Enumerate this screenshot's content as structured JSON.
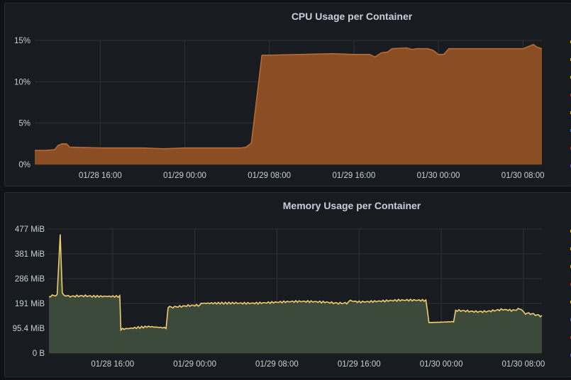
{
  "panels": {
    "cpu": {
      "title": "CPU Usage per Container"
    },
    "memory": {
      "title": "Memory Usage per Container"
    }
  },
  "colors": {
    "background": "#111217",
    "panel": "#181b1f",
    "cpu_fill": "#8b4d24",
    "cpu_line": "#b86a34",
    "mem_fill": "#3b4a3a",
    "mem_line": "#f2cc6c",
    "mem_second_series": "#5a2a4a",
    "mem_third_series": "#2a3552"
  },
  "chart_data": [
    {
      "type": "area",
      "title": "CPU Usage per Container",
      "x_ticks": [
        "01/28 16:00",
        "01/29 00:00",
        "01/29 08:00",
        "01/29 16:00",
        "01/30 00:00",
        "01/30 08:00"
      ],
      "y_ticks": [
        "0%",
        "5%",
        "10%",
        "15%"
      ],
      "ylim": [
        0,
        15
      ],
      "xlim_hours": [
        -6.2,
        41.8
      ],
      "series": [
        {
          "values_pct": [
            [
              -6.2,
              1.7
            ],
            [
              -5.2,
              1.7
            ],
            [
              -4.3,
              1.8
            ],
            [
              -4.0,
              2.3
            ],
            [
              -3.6,
              2.5
            ],
            [
              -3.2,
              2.5
            ],
            [
              -2.9,
              2.1
            ],
            [
              0,
              2.0
            ],
            [
              4,
              2.0
            ],
            [
              6,
              1.9
            ],
            [
              8,
              2.0
            ],
            [
              12,
              2.0
            ],
            [
              13.3,
              2.0
            ],
            [
              13.8,
              2.1
            ],
            [
              14.3,
              2.6
            ],
            [
              15.3,
              13.2
            ],
            [
              19,
              13.3
            ],
            [
              22,
              13.4
            ],
            [
              24,
              13.3
            ],
            [
              25.5,
              13.3
            ],
            [
              26.0,
              13.0
            ],
            [
              26.6,
              13.5
            ],
            [
              27.2,
              13.6
            ],
            [
              27.6,
              14.0
            ],
            [
              29,
              14.1
            ],
            [
              29.5,
              13.9
            ],
            [
              30.0,
              14.0
            ],
            [
              31.0,
              14.0
            ],
            [
              31.5,
              13.8
            ],
            [
              32.0,
              13.3
            ],
            [
              32.5,
              13.3
            ],
            [
              33.0,
              14.0
            ],
            [
              36,
              14.0
            ],
            [
              40,
              14.0
            ],
            [
              41.0,
              14.5
            ],
            [
              41.3,
              14.2
            ],
            [
              41.8,
              14.0
            ]
          ]
        }
      ]
    },
    {
      "type": "area",
      "title": "Memory Usage per Container",
      "x_ticks": [
        "01/28 16:00",
        "01/29 00:00",
        "01/29 08:00",
        "01/29 16:00",
        "01/30 00:00",
        "01/30 08:00"
      ],
      "y_ticks": [
        "0 B",
        "95.4 MiB",
        "191 MiB",
        "286 MiB",
        "381 MiB",
        "477 MiB"
      ],
      "ylim_mib": [
        0,
        477
      ],
      "xlim_hours": [
        -6.2,
        41.8
      ],
      "series": [
        {
          "name_hidden": true,
          "values_mib": [
            [
              -6.2,
              215
            ],
            [
              -5.4,
              220
            ],
            [
              -5.1,
              460
            ],
            [
              -4.9,
              230
            ],
            [
              -4.3,
              220
            ],
            [
              -2,
              215
            ],
            [
              0.7,
              215
            ],
            [
              0.8,
              95
            ],
            [
              3.5,
              105
            ],
            [
              5.2,
              100
            ],
            [
              5.4,
              180
            ],
            [
              6.2,
              180
            ],
            [
              8.5,
              180
            ],
            [
              8.6,
              195
            ],
            [
              12,
              195
            ],
            [
              15,
              195
            ],
            [
              18,
              195
            ],
            [
              21,
              195
            ],
            [
              22.8,
              195
            ],
            [
              23.0,
              205
            ],
            [
              24.0,
              200
            ],
            [
              30.5,
              200
            ],
            [
              30.8,
              120
            ],
            [
              33.2,
              120
            ],
            [
              33.4,
              160
            ],
            [
              38.0,
              165
            ],
            [
              39.0,
              160
            ],
            [
              39.8,
              170
            ],
            [
              40.2,
              150
            ],
            [
              41.8,
              145
            ]
          ]
        }
      ]
    }
  ],
  "legend_stub_colors": [
    "#e0b400",
    "#e0b400",
    "#e0b400",
    "#c0392b",
    "#e0b400",
    "#3b6bd0",
    "#c0392b",
    "#7a4fbf"
  ]
}
